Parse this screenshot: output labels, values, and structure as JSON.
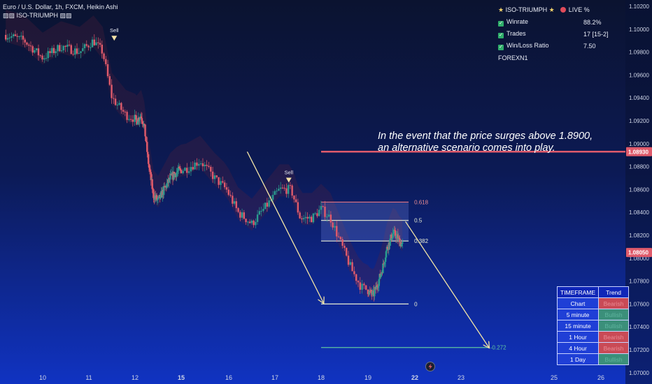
{
  "header": {
    "symbol_line": "Euro / U.S. Dollar, 1h, FXCM, Heikin Ashi",
    "indicator_line": "ISO-TRIUMPH"
  },
  "stats_panel": {
    "title": "ISO-TRIUMPH",
    "live_label": "LIVE %",
    "rows": [
      {
        "label": "Winrate",
        "value": "88.2%"
      },
      {
        "label": "Trades",
        "value": "17 [15-2]"
      },
      {
        "label": "Win/Loss Ratio",
        "value": "7.50"
      }
    ],
    "footer": "FOREXN1"
  },
  "annotation": {
    "line1": "In the event that the price surges above 1.8900,",
    "line2": "an alternative scenario comes into play."
  },
  "trend_table": {
    "header": {
      "timeframe": "TIMEFRAME",
      "trend": "Trend"
    },
    "rows": [
      {
        "timeframe": "Chart",
        "trend": "Bearish",
        "state": "bear"
      },
      {
        "timeframe": "5 minute",
        "trend": "Bullish",
        "state": "bull"
      },
      {
        "timeframe": "15 minute",
        "trend": "Bullish",
        "state": "bull"
      },
      {
        "timeframe": "1 Hour",
        "trend": "Bearish",
        "state": "bear"
      },
      {
        "timeframe": "4 Hour",
        "trend": "Bearish",
        "state": "bear"
      },
      {
        "timeframe": "1 Day",
        "trend": "Bullish",
        "state": "bull"
      }
    ]
  },
  "colors": {
    "bull": "#2a9d8f",
    "bear": "#e05b6b",
    "resistance": "#e05b6b",
    "fib_line": "#e8ecd4",
    "arrow": "#f2e4a6",
    "background_top": "#0b1330",
    "background_bottom": "#0f2fb6"
  },
  "chart_data": {
    "type": "candlestick",
    "y_axis": {
      "min": 1.07,
      "max": 1.102,
      "ticks": [
        "1.10200",
        "1.10000",
        "1.09800",
        "1.09600",
        "1.09400",
        "1.09200",
        "1.09000",
        "1.08800",
        "1.08600",
        "1.08400",
        "1.08200",
        "1.08000",
        "1.07800",
        "1.07600",
        "1.07400",
        "1.07200",
        "1.07000"
      ]
    },
    "x_axis": {
      "ticks": [
        {
          "label": "10",
          "day": 10
        },
        {
          "label": "11",
          "day": 11
        },
        {
          "label": "12",
          "day": 12
        },
        {
          "label": "15",
          "day": 15,
          "bold": true
        },
        {
          "label": "16",
          "day": 16
        },
        {
          "label": "17",
          "day": 17
        },
        {
          "label": "18",
          "day": 18
        },
        {
          "label": "19",
          "day": 19
        },
        {
          "label": "22",
          "day": 22,
          "bold": true
        },
        {
          "label": "23",
          "day": 23
        },
        {
          "label": "25",
          "day": 25
        },
        {
          "label": "26",
          "day": 26
        }
      ]
    },
    "price_path": [
      [
        9.2,
        1.0995
      ],
      [
        9.6,
        1.099
      ],
      [
        10.0,
        1.0975
      ],
      [
        10.4,
        1.0985
      ],
      [
        10.8,
        1.098
      ],
      [
        11.1,
        1.099
      ],
      [
        11.3,
        1.098
      ],
      [
        11.5,
        1.094
      ],
      [
        11.8,
        1.0925
      ],
      [
        12.1,
        1.092
      ],
      [
        12.4,
        1.0925
      ],
      [
        12.6,
        1.0915
      ],
      [
        12.9,
        1.088
      ],
      [
        13.2,
        1.0855
      ],
      [
        13.5,
        1.085
      ],
      [
        13.9,
        1.086
      ],
      [
        14.3,
        1.087
      ],
      [
        14.7,
        1.0875
      ],
      [
        15.1,
        1.0878
      ],
      [
        15.4,
        1.0885
      ],
      [
        15.7,
        1.087
      ],
      [
        15.95,
        1.086
      ],
      [
        16.2,
        1.084
      ],
      [
        16.5,
        1.083
      ],
      [
        16.8,
        1.0845
      ],
      [
        17.1,
        1.086
      ],
      [
        17.35,
        1.086
      ],
      [
        17.55,
        1.0835
      ],
      [
        17.8,
        1.0835
      ],
      [
        18.0,
        1.0843
      ],
      [
        18.2,
        1.0835
      ],
      [
        18.45,
        1.081
      ],
      [
        18.65,
        1.079
      ],
      [
        18.85,
        1.0775
      ],
      [
        19.1,
        1.077
      ],
      [
        19.35,
        1.0768
      ],
      [
        19.55,
        1.0775
      ],
      [
        19.8,
        1.0785
      ],
      [
        20.0,
        1.0795
      ],
      [
        20.2,
        1.0808
      ],
      [
        20.4,
        1.0815
      ],
      [
        20.6,
        1.0822
      ],
      [
        20.8,
        1.082
      ],
      [
        21.0,
        1.0815
      ],
      [
        21.2,
        1.0812
      ]
    ],
    "current_price": "1.08050",
    "resistance": {
      "value": "1.08930",
      "price": 1.0893
    },
    "fibonacci": [
      {
        "label": "0.618",
        "price": 1.0849
      },
      {
        "label": "0.5",
        "price": 1.0833
      },
      {
        "label": "0.382",
        "price": 1.0815
      },
      {
        "label": "0",
        "price": 1.076
      },
      {
        "label": "-0.272",
        "price": 1.0722
      }
    ],
    "signals": [
      {
        "label": "Sell",
        "day": 11.55,
        "price": 1.099
      },
      {
        "label": "Sell",
        "day": 17.3,
        "price": 1.0866
      }
    ]
  }
}
